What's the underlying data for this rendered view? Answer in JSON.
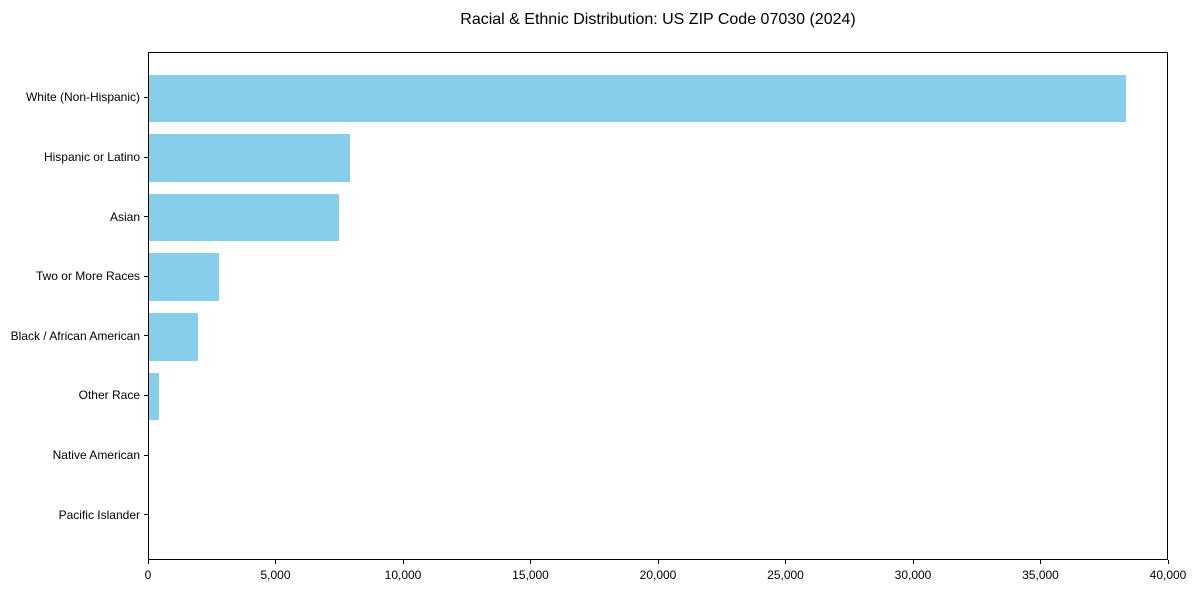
{
  "chart_data": {
    "type": "bar",
    "orientation": "horizontal",
    "title": "Racial & Ethnic Distribution: US ZIP Code 07030 (2024)",
    "categories": [
      "White (Non-Hispanic)",
      "Hispanic or Latino",
      "Asian",
      "Two or More Races",
      "Black / African American",
      "Other Race",
      "Native American",
      "Pacific Islander"
    ],
    "values": [
      38300,
      7900,
      7450,
      2750,
      1925,
      400,
      0,
      0
    ],
    "xlabel": "",
    "ylabel": "",
    "xlim": [
      0,
      40000
    ],
    "xticks": [
      0,
      5000,
      10000,
      15000,
      20000,
      25000,
      30000,
      35000,
      40000
    ],
    "xtick_labels": [
      "0",
      "5,000",
      "10,000",
      "15,000",
      "20,000",
      "25,000",
      "30,000",
      "35,000",
      "40,000"
    ],
    "bar_color": "#87CEEB",
    "axis_color": "#000000",
    "background_color": "#ffffff",
    "grid": false,
    "legend": null
  }
}
